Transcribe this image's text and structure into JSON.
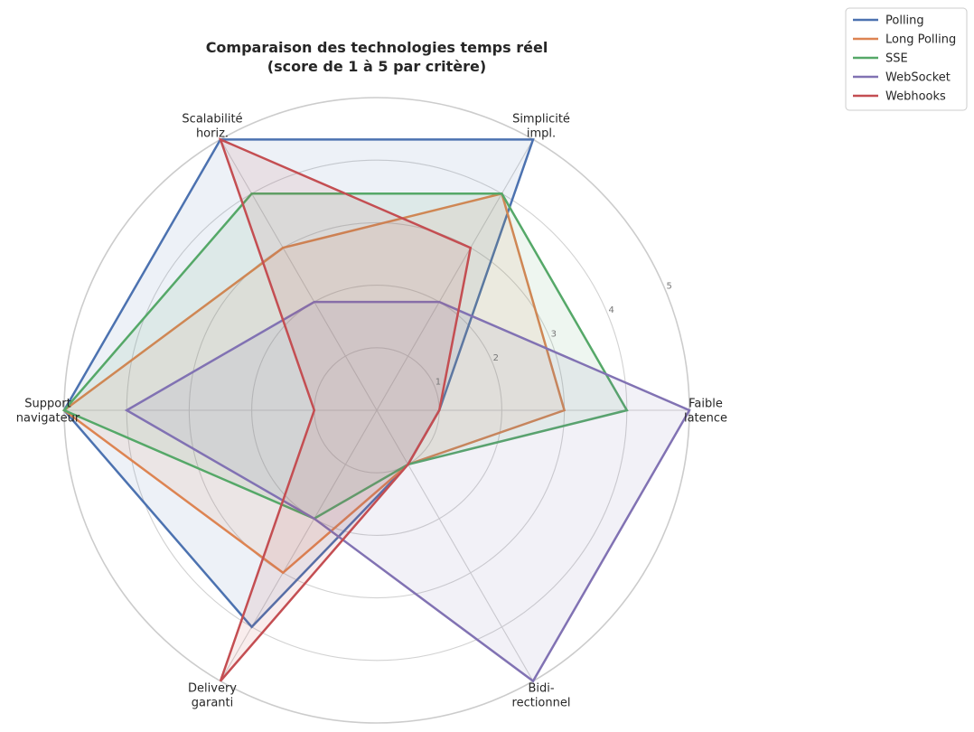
{
  "chart_data": {
    "type": "radar",
    "title": [
      "Comparaison des technologies temps réel",
      "(score de 1 à 5 par critère)"
    ],
    "axes": [
      [
        "Faible",
        "latence"
      ],
      [
        "Simplicité",
        "impl."
      ],
      [
        "Scalabilité",
        "horiz."
      ],
      [
        "Support",
        "navigateur"
      ],
      [
        "Delivery",
        "garanti"
      ],
      [
        "Bidi-",
        "rectionnel"
      ]
    ],
    "rmax": 5,
    "radial_ticks": [
      1,
      2,
      3,
      4,
      5
    ],
    "grid": true,
    "legend_position": "top-right",
    "series": [
      {
        "name": "Polling",
        "color": "#4c72b0",
        "values": [
          1,
          5,
          5,
          5,
          4,
          1
        ]
      },
      {
        "name": "Long Polling",
        "color": "#dd8452",
        "values": [
          3,
          4,
          3,
          5,
          3,
          1
        ]
      },
      {
        "name": "SSE",
        "color": "#55a868",
        "values": [
          4,
          4,
          4,
          5,
          2,
          1
        ]
      },
      {
        "name": "WebSocket",
        "color": "#8172b3",
        "values": [
          5,
          2,
          2,
          4,
          2,
          5
        ]
      },
      {
        "name": "Webhooks",
        "color": "#c44e52",
        "values": [
          1,
          3,
          5,
          1,
          5,
          1
        ]
      }
    ]
  }
}
